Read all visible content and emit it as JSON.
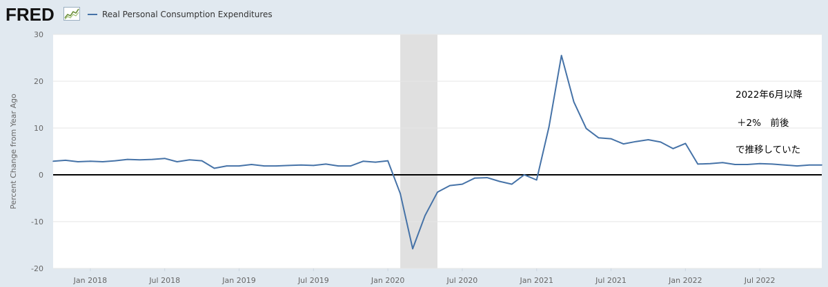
{
  "header": {
    "logo_text": "FRED",
    "logo_icon": "fred-chart-icon"
  },
  "colors": {
    "series": "#4572a7",
    "recession": "#e0e0e0",
    "zero_line": "#000000",
    "grid": "#e6e6e6",
    "outer_background": "#e1e9f0"
  },
  "annotations": [
    "2022年6月以降",
    "＋2%　前後",
    "で推移していた"
  ],
  "chart_data": {
    "type": "line",
    "title": "",
    "ylabel": "Percent Change from Year Ago",
    "xlabel": "",
    "ylim": [
      -20,
      30
    ],
    "yticks": [
      30,
      20,
      10,
      0,
      -10,
      -20
    ],
    "xlim": [
      "2017-10",
      "2022-12"
    ],
    "grid": true,
    "legend_position": "top-left",
    "x_tick_labels": [
      "Jan 2018",
      "Jul 2018",
      "Jan 2019",
      "Jul 2019",
      "Jan 2020",
      "Jul 2020",
      "Jan 2021",
      "Jul 2021",
      "Jan 2022",
      "Jul 2022"
    ],
    "x_tick_dates": [
      "2018-01",
      "2018-07",
      "2019-01",
      "2019-07",
      "2020-01",
      "2020-07",
      "2021-01",
      "2021-07",
      "2022-01",
      "2022-07"
    ],
    "recession_shading": [
      "2020-02",
      "2020-04"
    ],
    "reference_line": 0,
    "series": [
      {
        "name": "Real Personal Consumption Expenditures",
        "x": [
          "2017-10",
          "2017-11",
          "2017-12",
          "2018-01",
          "2018-02",
          "2018-03",
          "2018-04",
          "2018-05",
          "2018-06",
          "2018-07",
          "2018-08",
          "2018-09",
          "2018-10",
          "2018-11",
          "2018-12",
          "2019-01",
          "2019-02",
          "2019-03",
          "2019-04",
          "2019-05",
          "2019-06",
          "2019-07",
          "2019-08",
          "2019-09",
          "2019-10",
          "2019-11",
          "2019-12",
          "2020-01",
          "2020-02",
          "2020-03",
          "2020-04",
          "2020-05",
          "2020-06",
          "2020-07",
          "2020-08",
          "2020-09",
          "2020-10",
          "2020-11",
          "2020-12",
          "2021-01",
          "2021-02",
          "2021-03",
          "2021-04",
          "2021-05",
          "2021-06",
          "2021-07",
          "2021-08",
          "2021-09",
          "2021-10",
          "2021-11",
          "2021-12",
          "2022-01",
          "2022-02",
          "2022-03",
          "2022-04",
          "2022-05",
          "2022-06",
          "2022-07",
          "2022-08",
          "2022-09",
          "2022-10",
          "2022-11",
          "2022-12"
        ],
        "values": [
          2.9,
          3.1,
          2.8,
          2.9,
          2.8,
          3.0,
          3.3,
          3.2,
          3.3,
          3.5,
          2.8,
          3.2,
          3.0,
          1.4,
          1.9,
          1.9,
          2.2,
          1.9,
          1.9,
          2.0,
          2.1,
          2.0,
          2.3,
          1.9,
          1.9,
          2.9,
          2.7,
          3.0,
          -4.0,
          -15.8,
          -8.7,
          -3.7,
          -2.3,
          -2.0,
          -0.7,
          -0.6,
          -1.4,
          -2.0,
          0.0,
          -1.1,
          10.3,
          25.5,
          15.6,
          9.9,
          7.9,
          7.7,
          6.6,
          7.1,
          7.5,
          7.0,
          5.6,
          6.7,
          2.3,
          2.4,
          2.6,
          2.2,
          2.2,
          2.4,
          2.3,
          2.1,
          1.9,
          2.1,
          2.1
        ]
      }
    ]
  }
}
